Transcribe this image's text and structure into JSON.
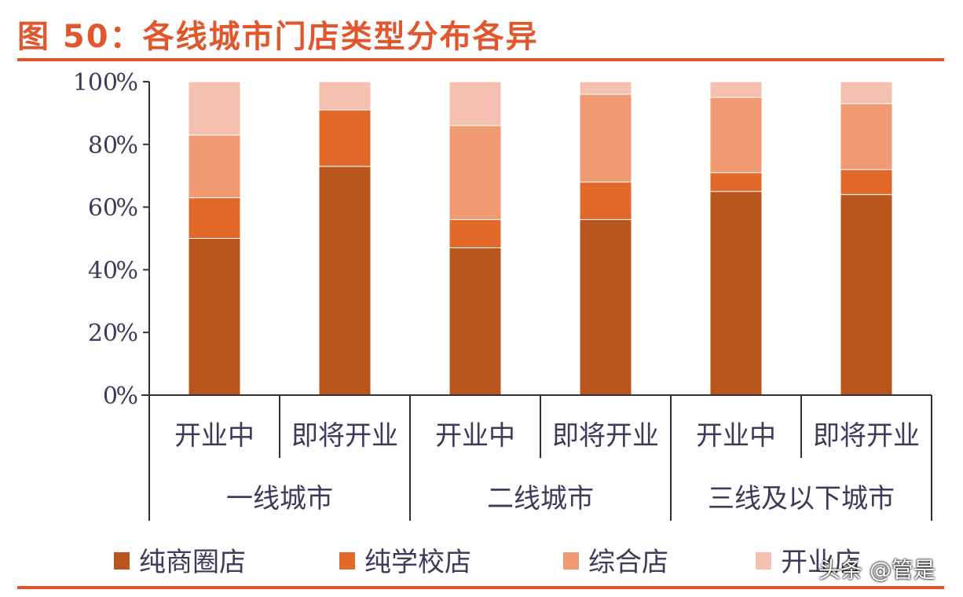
{
  "title": "图 50：各线城市门店类型分布各异",
  "watermark": "头条 @管是",
  "chart_data": {
    "type": "bar",
    "stacked": true,
    "ylim": [
      0,
      100
    ],
    "yticks": [
      "0%",
      "20%",
      "40%",
      "60%",
      "80%",
      "100%"
    ],
    "categories": [
      "开业中",
      "即将开业",
      "开业中",
      "即将开业",
      "开业中",
      "即将开业"
    ],
    "groups": [
      "一线城市",
      "二线城市",
      "三线及以下城市"
    ],
    "series": [
      {
        "name": "纯商圈店",
        "color": "#b8561e",
        "values": [
          50,
          73,
          47,
          56,
          65,
          64
        ]
      },
      {
        "name": "纯学校店",
        "color": "#e2692a",
        "values": [
          13,
          18,
          9,
          12,
          6,
          8
        ]
      },
      {
        "name": "综合店",
        "color": "#f19a72",
        "values": [
          20,
          0,
          30,
          28,
          24,
          21
        ]
      },
      {
        "name": "开业店",
        "color": "#f6c0b0",
        "values": [
          17,
          9,
          14,
          4,
          5,
          7
        ]
      }
    ],
    "legend_position": "bottom"
  }
}
